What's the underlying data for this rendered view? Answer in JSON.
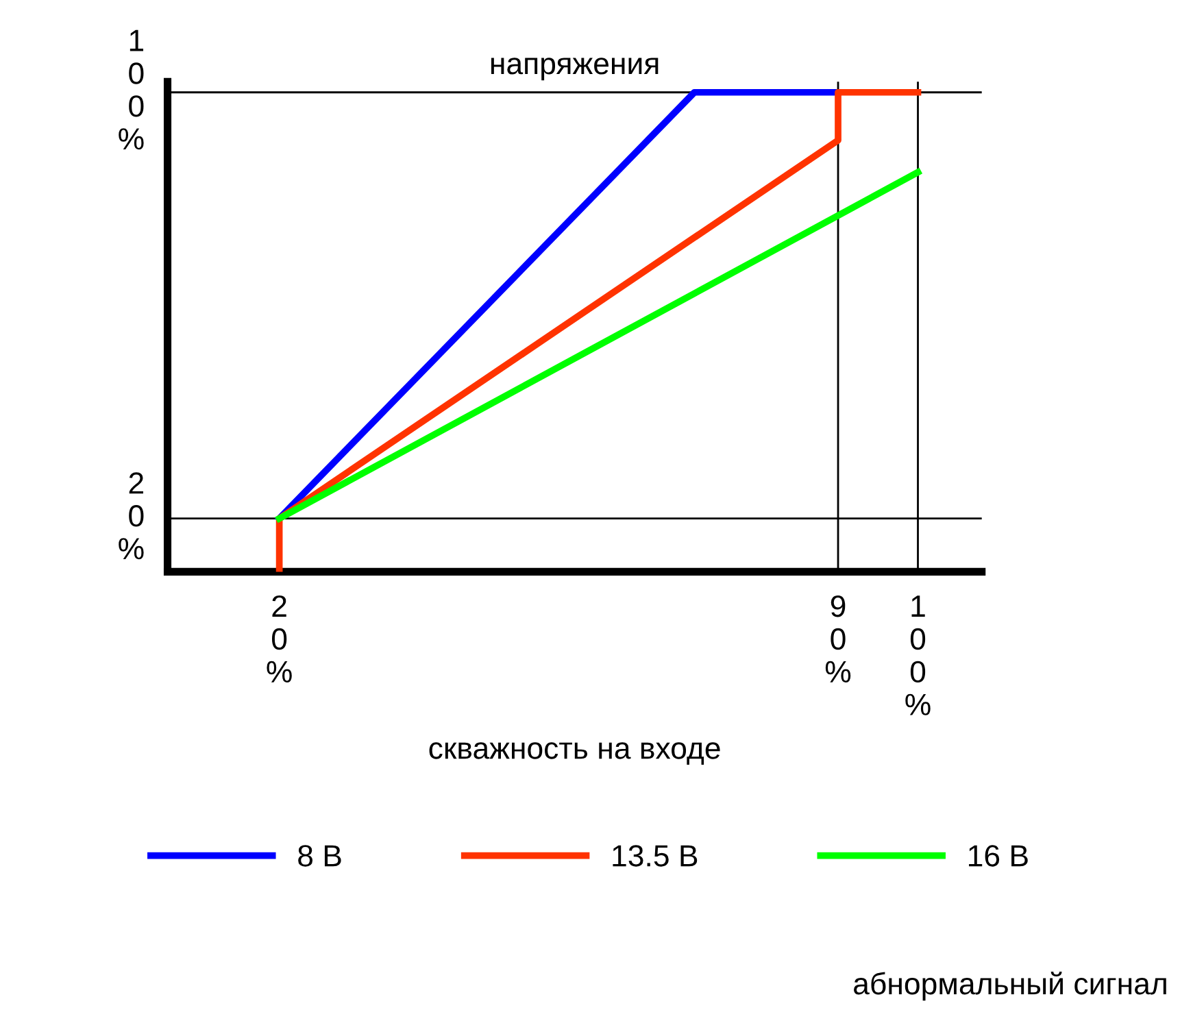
{
  "chart_data": {
    "type": "line",
    "title": "напряжения",
    "xlabel": "скважность на входе",
    "annotations": [
      "абнормальный сигнал"
    ],
    "xlim": [
      6,
      108
    ],
    "ylim": [
      10,
      102
    ],
    "xticks": [
      {
        "value": 20,
        "label": "20%"
      },
      {
        "value": 90,
        "label": "90%"
      },
      {
        "value": 100,
        "label": "100%"
      }
    ],
    "yticks": [
      {
        "value": 20,
        "label": "20%"
      },
      {
        "value": 100,
        "label": "100%"
      }
    ],
    "series": [
      {
        "name": "8 В",
        "color": "#0000ff",
        "x": [
          20,
          72,
          90
        ],
        "values": [
          20,
          100,
          100
        ]
      },
      {
        "name": "13.5 В",
        "color": "#ff3300",
        "x": [
          20,
          20,
          90,
          90,
          100
        ],
        "values": [
          10,
          20,
          91,
          100,
          100
        ]
      },
      {
        "name": "16 В",
        "color": "#00ff00",
        "x": [
          20,
          100
        ],
        "values": [
          20,
          85
        ]
      }
    ],
    "ref_lines": [
      {
        "axis": "x",
        "value": 90,
        "color": "#000000"
      },
      {
        "axis": "x",
        "value": 100,
        "color": "#000000"
      },
      {
        "axis": "y",
        "value": 100,
        "color": "#000000"
      },
      {
        "axis": "y",
        "value": 20,
        "color": "#000000"
      }
    ],
    "grid": false,
    "legend": "bottom",
    "marker": "none",
    "line_style": "solid"
  }
}
